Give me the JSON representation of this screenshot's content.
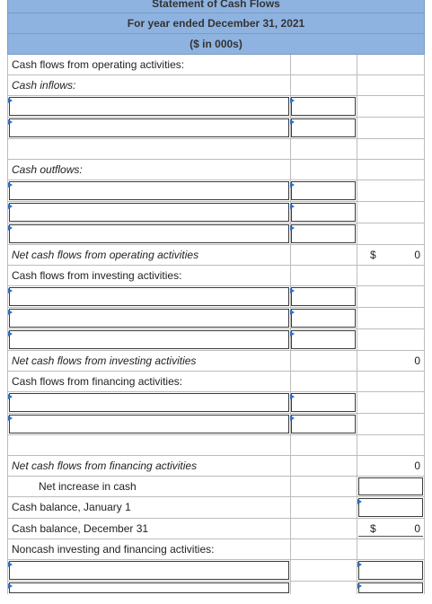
{
  "header": {
    "title": "Statement of Cash Flows",
    "period": "For year ended December 31, 2021",
    "units": "($ in 000s)"
  },
  "rows": {
    "operating_label": "Cash flows from operating activities:",
    "inflows_label": "Cash inflows:",
    "outflows_label": "Cash outflows:",
    "net_operating_label": "Net cash flows from operating activities",
    "net_operating_currency": "$",
    "net_operating_value": "0",
    "investing_label": "Cash flows from investing activities:",
    "net_investing_label": "Net cash flows from investing activities",
    "net_investing_value": "0",
    "financing_label": "Cash flows from financing activities:",
    "net_financing_label": "Net cash flows from financing activities",
    "net_financing_value": "0",
    "net_increase_label": "Net increase in cash",
    "cash_begin_label": "Cash balance, January 1",
    "cash_end_label": "Cash balance, December 31",
    "cash_end_currency": "$",
    "cash_end_value": "0",
    "noncash_label": "Noncash investing and financing activities:"
  }
}
